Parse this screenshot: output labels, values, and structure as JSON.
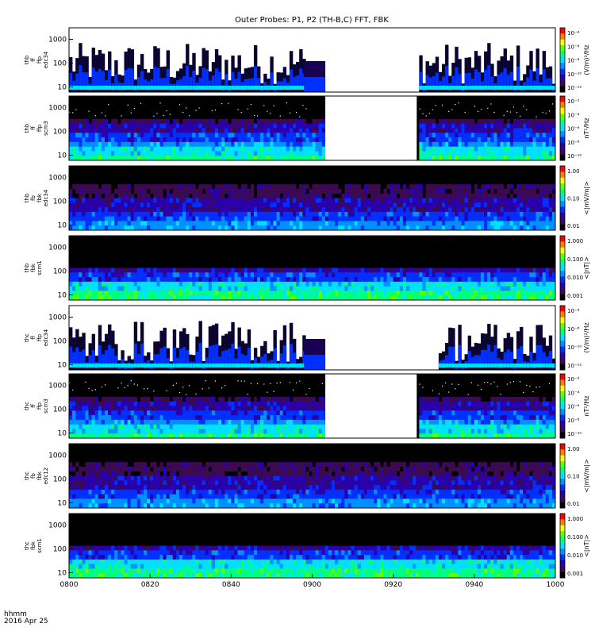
{
  "chart_data": {
    "type": "heatmap",
    "title": "Outer Probes: P1, P2 (TH-B,C) FFT, FBK",
    "x_ticks": [
      "0800",
      "0820",
      "0840",
      "0900",
      "0920",
      "0940",
      "1000"
    ],
    "footer_time": "hhmm",
    "footer_date": "2016 Apr 25",
    "colormap": [
      "#000000",
      "#3b0a4f",
      "#2a00a8",
      "#0030ff",
      "#0090ff",
      "#00e0ff",
      "#00ff80",
      "#60ff00",
      "#ffff00",
      "#ff8000",
      "#ff0000"
    ],
    "panels": [
      {
        "ylabel": [
          "thb",
          "ff",
          "ffp",
          "edc34"
        ],
        "y_ticks": [
          "10",
          "100",
          "1000"
        ],
        "cb_ticks": [
          "10⁻⁴",
          "10⁻⁶",
          "10⁻⁸",
          "10⁻¹⁰",
          "10⁻¹²"
        ],
        "cb_label": "(V/m)²/Hz",
        "style": "spiky",
        "gaps": [
          [
            0.483,
            0.527
          ],
          [
            0.527,
            0.715
          ]
        ]
      },
      {
        "ylabel": [
          "thb",
          "ff",
          "ffp",
          "scm3"
        ],
        "y_ticks": [
          "10",
          "100",
          "1000"
        ],
        "cb_ticks": [
          "10⁻²",
          "10⁻⁴",
          "10⁻⁶",
          "10⁻⁸",
          "10⁻¹⁰"
        ],
        "cb_label": "nT²/Hz",
        "style": "scm",
        "gaps": [
          [
            0.527,
            0.715
          ]
        ]
      },
      {
        "ylabel": [
          "thb",
          "fb",
          "fbk",
          "edc34"
        ],
        "y_ticks": [
          "10",
          "100",
          "1000"
        ],
        "cb_ticks": [
          "1.00",
          "0.10",
          "0.01"
        ],
        "cb_label": "<|mV/m|>",
        "style": "fbk_e",
        "gaps": []
      },
      {
        "ylabel": [
          "thb",
          "fbk",
          "scm1"
        ],
        "y_ticks": [
          "10",
          "100",
          "1000"
        ],
        "cb_ticks": [
          "1.000",
          "0.100",
          "0.010",
          "0.001"
        ],
        "cb_label": "<|nT|>",
        "style": "fbk_b",
        "gaps": []
      },
      {
        "ylabel": [
          "thc",
          "ff",
          "ffp",
          "edc34"
        ],
        "y_ticks": [
          "10",
          "100",
          "1000"
        ],
        "cb_ticks": [
          "10⁻⁶",
          "10⁻⁸",
          "10⁻¹⁰",
          "10⁻¹²"
        ],
        "cb_label": "(V/m)²/Hz",
        "style": "spiky",
        "gaps": [
          [
            0.483,
            0.527
          ],
          [
            0.527,
            0.755
          ]
        ]
      },
      {
        "ylabel": [
          "thc",
          "ff",
          "ffp",
          "scm3"
        ],
        "y_ticks": [
          "10",
          "100",
          "1000"
        ],
        "cb_ticks": [
          "10⁻²",
          "10⁻⁴",
          "10⁻⁶",
          "10⁻⁸",
          "10⁻¹⁰"
        ],
        "cb_label": "nT²/Hz",
        "style": "scm",
        "gaps": [
          [
            0.527,
            0.715
          ]
        ]
      },
      {
        "ylabel": [
          "thc",
          "fb",
          "fbk",
          "edc12"
        ],
        "y_ticks": [
          "10",
          "100",
          "1000"
        ],
        "cb_ticks": [
          "1.00",
          "0.10",
          "0.01"
        ],
        "cb_label": "<|mV/m|>",
        "style": "fbk_e",
        "gaps": []
      },
      {
        "ylabel": [
          "thc",
          "fbk",
          "scm1"
        ],
        "y_ticks": [
          "10",
          "100",
          "1000"
        ],
        "cb_ticks": [
          "1.000",
          "0.100",
          "0.010",
          "0.001"
        ],
        "cb_label": "<|nT|>",
        "style": "fbk_b",
        "gaps": []
      }
    ]
  }
}
